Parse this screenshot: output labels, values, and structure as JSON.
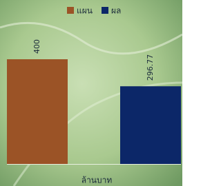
{
  "chart_data": {
    "type": "bar",
    "categories": [
      "ล้านบาท"
    ],
    "series": [
      {
        "name": "แผน",
        "color": "#9b5326",
        "values": [
          400
        ]
      },
      {
        "name": "ผล",
        "color": "#0c2768",
        "values": [
          296.77
        ]
      }
    ]
  }
}
